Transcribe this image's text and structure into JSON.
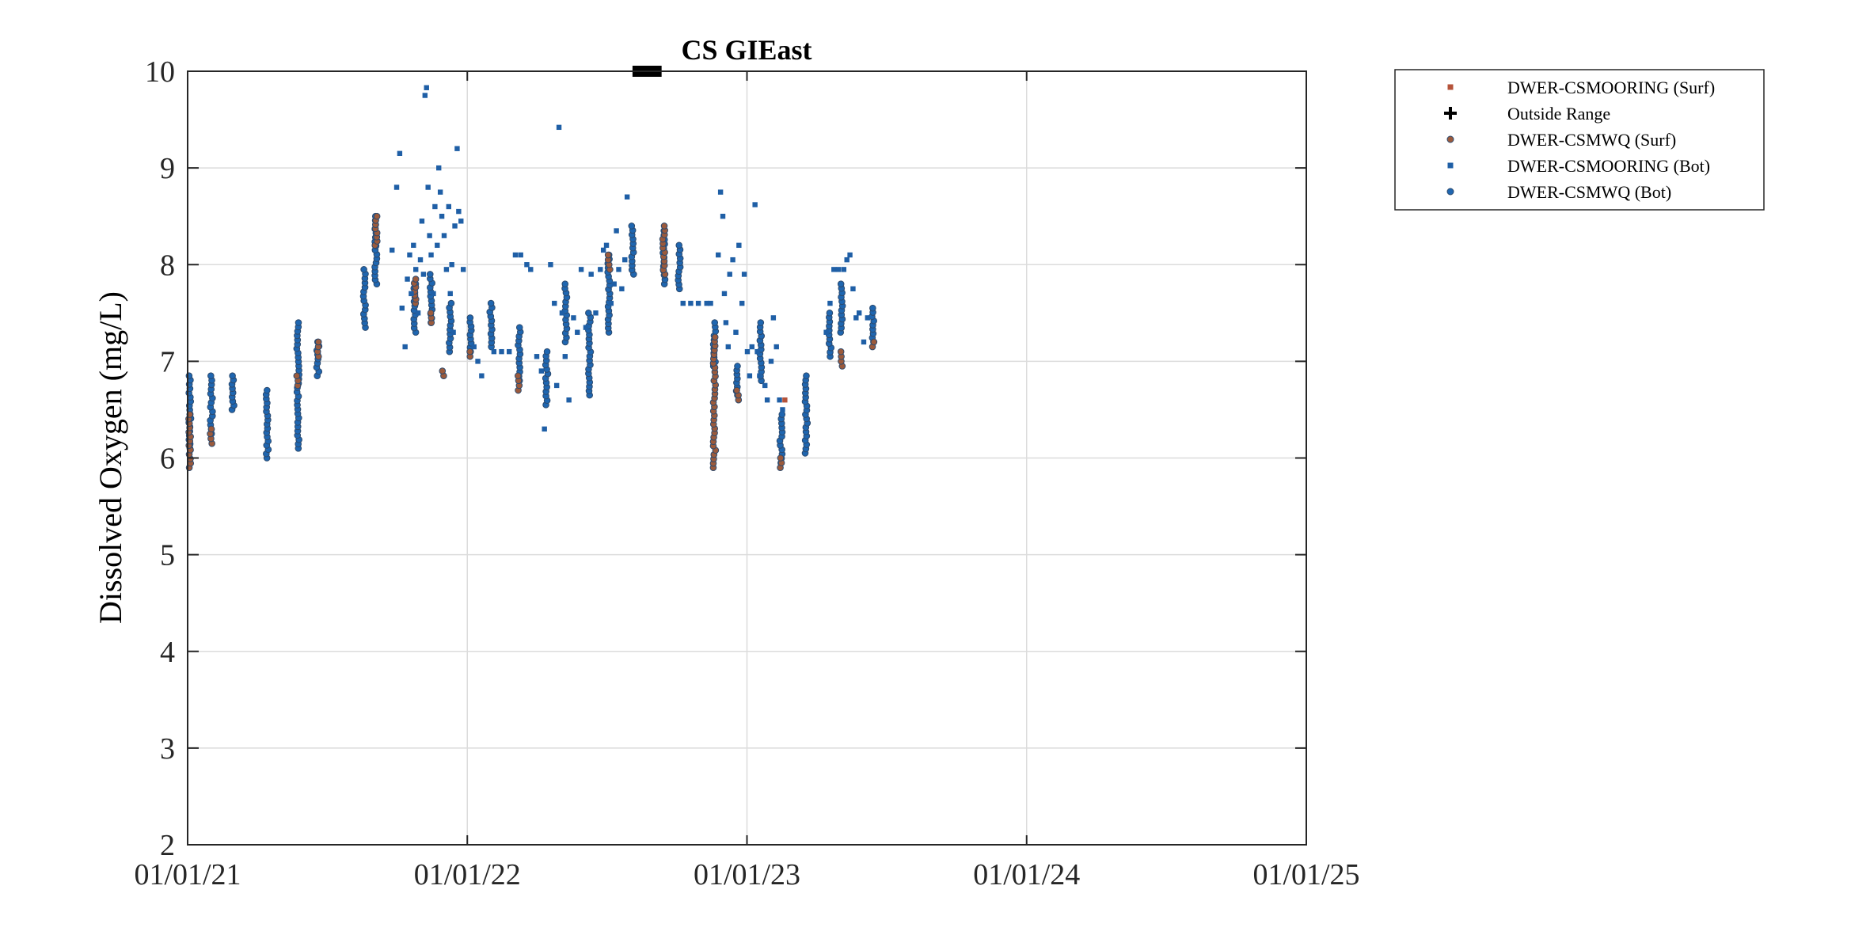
{
  "chart_data": {
    "type": "scatter",
    "title": "CS GIEast",
    "xlabel": "",
    "ylabel": "Dissolved Oxygen (mg/L)",
    "xlim": [
      "2021-01-01",
      "2025-01-01"
    ],
    "ylim": [
      2,
      10
    ],
    "x_ticks": [
      "01/01/21",
      "01/01/22",
      "01/01/23",
      "01/01/24",
      "01/01/25"
    ],
    "y_ticks": [
      2,
      3,
      4,
      5,
      6,
      7,
      8,
      9,
      10
    ],
    "grid": true,
    "legend_position": "outside-top-right",
    "legend": [
      {
        "label": "DWER-CSMOORING (Surf)",
        "marker": "square",
        "color": "#b5533a"
      },
      {
        "label": "Outside Range",
        "marker": "plus",
        "color": "#000000"
      },
      {
        "label": "DWER-CSMWQ (Surf)",
        "marker": "circle",
        "color": "#9b5a3c"
      },
      {
        "label": "DWER-CSMOORING (Bot)",
        "marker": "square",
        "color": "#1f5fa6"
      },
      {
        "label": "DWER-CSMWQ (Bot)",
        "marker": "circle",
        "color": "#1f66b0"
      }
    ],
    "outside_range_band": {
      "x_start": "2022-08-05",
      "x_end": "2022-09-12",
      "y": 10
    },
    "series": [
      {
        "name": "DWER-CSMWQ (Bot)",
        "marker": "circle",
        "color": "#1f66b0",
        "profiles": [
          {
            "x": "2021-01-04",
            "y_min": 6.1,
            "y_max": 6.85
          },
          {
            "x": "2021-02-01",
            "y_min": 6.25,
            "y_max": 6.85
          },
          {
            "x": "2021-03-01",
            "y_min": 6.5,
            "y_max": 6.85
          },
          {
            "x": "2021-04-15",
            "y_min": 6.0,
            "y_max": 6.7
          },
          {
            "x": "2021-05-25",
            "y_min": 6.1,
            "y_max": 7.4
          },
          {
            "x": "2021-06-20",
            "y_min": 6.85,
            "y_max": 7.2
          },
          {
            "x": "2021-08-20",
            "y_min": 7.35,
            "y_max": 7.95
          },
          {
            "x": "2021-09-04",
            "y_min": 7.8,
            "y_max": 8.5
          },
          {
            "x": "2021-10-25",
            "y_min": 7.3,
            "y_max": 7.8
          },
          {
            "x": "2021-11-15",
            "y_min": 7.4,
            "y_max": 7.9
          },
          {
            "x": "2021-12-10",
            "y_min": 7.1,
            "y_max": 7.6
          },
          {
            "x": "2022-01-05",
            "y_min": 7.1,
            "y_max": 7.45
          },
          {
            "x": "2022-02-01",
            "y_min": 7.15,
            "y_max": 7.6
          },
          {
            "x": "2022-03-10",
            "y_min": 6.8,
            "y_max": 7.35
          },
          {
            "x": "2022-04-15",
            "y_min": 6.55,
            "y_max": 7.1
          },
          {
            "x": "2022-05-10",
            "y_min": 7.2,
            "y_max": 7.8
          },
          {
            "x": "2022-06-10",
            "y_min": 6.65,
            "y_max": 7.5
          },
          {
            "x": "2022-07-05",
            "y_min": 7.3,
            "y_max": 8.1
          },
          {
            "x": "2022-08-05",
            "y_min": 7.9,
            "y_max": 8.4
          },
          {
            "x": "2022-09-15",
            "y_min": 7.8,
            "y_max": 8.35
          },
          {
            "x": "2022-10-05",
            "y_min": 7.75,
            "y_max": 8.2
          },
          {
            "x": "2022-11-20",
            "y_min": 6.95,
            "y_max": 7.4
          },
          {
            "x": "2022-12-20",
            "y_min": 6.65,
            "y_max": 6.95
          },
          {
            "x": "2023-01-20",
            "y_min": 6.8,
            "y_max": 7.4
          },
          {
            "x": "2023-02-15",
            "y_min": 5.95,
            "y_max": 6.45
          },
          {
            "x": "2023-03-20",
            "y_min": 6.05,
            "y_max": 6.85
          },
          {
            "x": "2023-04-20",
            "y_min": 7.05,
            "y_max": 7.5
          },
          {
            "x": "2023-05-05",
            "y_min": 7.3,
            "y_max": 7.8
          },
          {
            "x": "2023-06-15",
            "y_min": 7.2,
            "y_max": 7.55
          }
        ]
      },
      {
        "name": "DWER-CSMWQ (Surf)",
        "marker": "circle",
        "color": "#9b5a3c",
        "profiles": [
          {
            "x": "2021-01-04",
            "y_min": 5.9,
            "y_max": 6.45
          },
          {
            "x": "2021-02-01",
            "y_min": 6.15,
            "y_max": 6.3
          },
          {
            "x": "2021-05-25",
            "y_min": 6.75,
            "y_max": 6.85
          },
          {
            "x": "2021-06-20",
            "y_min": 7.05,
            "y_max": 7.2
          },
          {
            "x": "2021-09-04",
            "y_min": 8.2,
            "y_max": 8.5
          },
          {
            "x": "2021-10-25",
            "y_min": 7.6,
            "y_max": 7.85
          },
          {
            "x": "2021-11-15",
            "y_min": 7.4,
            "y_max": 7.5
          },
          {
            "x": "2021-12-01",
            "y_min": 6.85,
            "y_max": 6.9
          },
          {
            "x": "2022-01-05",
            "y_min": 7.05,
            "y_max": 7.1
          },
          {
            "x": "2022-03-10",
            "y_min": 6.7,
            "y_max": 6.85
          },
          {
            "x": "2022-07-05",
            "y_min": 7.95,
            "y_max": 8.1
          },
          {
            "x": "2022-09-15",
            "y_min": 7.9,
            "y_max": 8.4
          },
          {
            "x": "2022-11-20",
            "y_min": 5.9,
            "y_max": 7.25
          },
          {
            "x": "2022-12-20",
            "y_min": 6.6,
            "y_max": 6.7
          },
          {
            "x": "2023-02-15",
            "y_min": 5.9,
            "y_max": 6.0
          },
          {
            "x": "2023-05-05",
            "y_min": 6.95,
            "y_max": 7.1
          },
          {
            "x": "2023-06-15",
            "y_min": 7.15,
            "y_max": 7.2
          }
        ]
      },
      {
        "name": "DWER-CSMOORING (Bot)",
        "marker": "square",
        "color": "#1f5fa6",
        "points": [
          [
            "2021-09-25",
            8.15
          ],
          [
            "2021-10-01",
            8.8
          ],
          [
            "2021-10-05",
            9.15
          ],
          [
            "2021-10-08",
            7.55
          ],
          [
            "2021-10-12",
            7.15
          ],
          [
            "2021-10-15",
            7.85
          ],
          [
            "2021-10-18",
            8.1
          ],
          [
            "2021-10-20",
            7.7
          ],
          [
            "2021-10-23",
            8.2
          ],
          [
            "2021-10-26",
            7.95
          ],
          [
            "2021-10-29",
            7.5
          ],
          [
            "2021-11-01",
            8.05
          ],
          [
            "2021-11-03",
            8.45
          ],
          [
            "2021-11-05",
            7.9
          ],
          [
            "2021-11-07",
            9.75
          ],
          [
            "2021-11-09",
            9.83
          ],
          [
            "2021-11-11",
            8.8
          ],
          [
            "2021-11-13",
            8.3
          ],
          [
            "2021-11-15",
            8.1
          ],
          [
            "2021-11-18",
            7.7
          ],
          [
            "2021-11-20",
            8.6
          ],
          [
            "2021-11-23",
            8.2
          ],
          [
            "2021-11-25",
            9.0
          ],
          [
            "2021-11-27",
            8.75
          ],
          [
            "2021-11-29",
            8.5
          ],
          [
            "2021-12-02",
            8.3
          ],
          [
            "2021-12-05",
            7.95
          ],
          [
            "2021-12-08",
            8.6
          ],
          [
            "2021-12-10",
            7.7
          ],
          [
            "2021-12-12",
            8.0
          ],
          [
            "2021-12-14",
            7.3
          ],
          [
            "2021-12-16",
            8.4
          ],
          [
            "2021-12-19",
            9.2
          ],
          [
            "2021-12-21",
            8.55
          ],
          [
            "2021-12-24",
            8.45
          ],
          [
            "2021-12-27",
            7.95
          ],
          [
            "2022-01-10",
            7.15
          ],
          [
            "2022-01-15",
            7.0
          ],
          [
            "2022-01-20",
            6.85
          ],
          [
            "2022-02-05",
            7.1
          ],
          [
            "2022-02-15",
            7.1
          ],
          [
            "2022-02-25",
            7.1
          ],
          [
            "2022-03-05",
            8.1
          ],
          [
            "2022-03-12",
            8.1
          ],
          [
            "2022-03-20",
            8.0
          ],
          [
            "2022-03-25",
            7.95
          ],
          [
            "2022-04-02",
            7.05
          ],
          [
            "2022-04-08",
            6.9
          ],
          [
            "2022-04-12",
            6.3
          ],
          [
            "2022-04-20",
            8.0
          ],
          [
            "2022-04-25",
            7.6
          ],
          [
            "2022-04-28",
            6.75
          ],
          [
            "2022-05-01",
            9.42
          ],
          [
            "2022-05-05",
            7.5
          ],
          [
            "2022-05-09",
            7.05
          ],
          [
            "2022-05-14",
            6.6
          ],
          [
            "2022-05-20",
            7.45
          ],
          [
            "2022-05-25",
            7.3
          ],
          [
            "2022-05-30",
            7.95
          ],
          [
            "2022-06-05",
            7.35
          ],
          [
            "2022-06-12",
            7.9
          ],
          [
            "2022-06-18",
            7.5
          ],
          [
            "2022-06-24",
            7.95
          ],
          [
            "2022-06-28",
            8.15
          ],
          [
            "2022-07-02",
            8.2
          ],
          [
            "2022-07-08",
            7.6
          ],
          [
            "2022-07-12",
            7.8
          ],
          [
            "2022-07-15",
            8.35
          ],
          [
            "2022-07-18",
            7.95
          ],
          [
            "2022-07-22",
            7.75
          ],
          [
            "2022-07-26",
            8.05
          ],
          [
            "2022-07-29",
            8.7
          ],
          [
            "2022-10-10",
            7.6
          ],
          [
            "2022-10-20",
            7.6
          ],
          [
            "2022-10-30",
            7.6
          ],
          [
            "2022-11-10",
            7.6
          ],
          [
            "2022-11-15",
            7.6
          ],
          [
            "2022-11-25",
            8.1
          ],
          [
            "2022-11-28",
            8.75
          ],
          [
            "2022-12-01",
            8.5
          ],
          [
            "2022-12-03",
            7.7
          ],
          [
            "2022-12-05",
            7.4
          ],
          [
            "2022-12-08",
            7.15
          ],
          [
            "2022-12-10",
            7.9
          ],
          [
            "2022-12-14",
            8.05
          ],
          [
            "2022-12-18",
            7.3
          ],
          [
            "2022-12-22",
            8.2
          ],
          [
            "2022-12-26",
            7.6
          ],
          [
            "2022-12-29",
            7.9
          ],
          [
            "2023-01-02",
            7.1
          ],
          [
            "2023-01-05",
            6.85
          ],
          [
            "2023-01-08",
            7.15
          ],
          [
            "2023-01-12",
            8.62
          ],
          [
            "2023-01-15",
            7.1
          ],
          [
            "2023-01-18",
            6.85
          ],
          [
            "2023-01-25",
            6.75
          ],
          [
            "2023-01-28",
            6.6
          ],
          [
            "2023-02-02",
            7.0
          ],
          [
            "2023-02-05",
            7.45
          ],
          [
            "2023-02-09",
            7.15
          ],
          [
            "2023-02-13",
            6.6
          ],
          [
            "2023-02-17",
            6.5
          ],
          [
            "2023-04-15",
            7.3
          ],
          [
            "2023-04-20",
            7.6
          ],
          [
            "2023-04-25",
            7.95
          ],
          [
            "2023-05-01",
            7.95
          ],
          [
            "2023-05-08",
            7.95
          ],
          [
            "2023-05-12",
            8.05
          ],
          [
            "2023-05-16",
            8.1
          ],
          [
            "2023-05-20",
            7.75
          ],
          [
            "2023-05-24",
            7.45
          ],
          [
            "2023-05-28",
            7.5
          ],
          [
            "2023-06-03",
            7.2
          ],
          [
            "2023-06-08",
            7.45
          ]
        ]
      },
      {
        "name": "DWER-CSMOORING (Surf)",
        "marker": "square",
        "color": "#b5533a",
        "points": [
          [
            "2023-02-20",
            6.6
          ]
        ]
      }
    ]
  }
}
